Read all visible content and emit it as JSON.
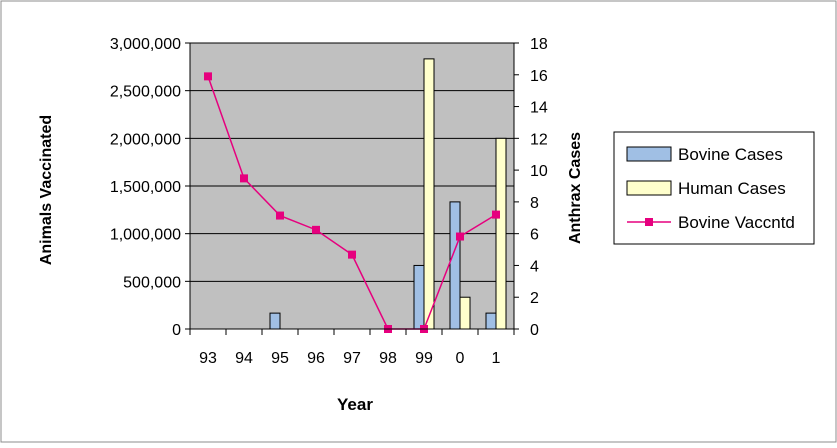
{
  "chart_data": {
    "type": "bar",
    "categories": [
      "93",
      "94",
      "95",
      "96",
      "97",
      "98",
      "99",
      "0",
      "1"
    ],
    "xlabel": "Year",
    "ylabel_left": "Animals Vaccinated",
    "ylabel_right": "Anthrax Cases",
    "ylim_left": [
      0,
      3000000
    ],
    "ylim_right": [
      0,
      18
    ],
    "yticks_left": [
      "0",
      "500,000",
      "1,000,000",
      "1,500,000",
      "2,000,000",
      "2,500,000",
      "3,000,000"
    ],
    "yticks_right": [
      "0",
      "2",
      "4",
      "6",
      "8",
      "10",
      "12",
      "14",
      "16",
      "18"
    ],
    "legend_position": "right",
    "series": [
      {
        "name": "Bovine Cases",
        "kind": "bar",
        "axis": "right",
        "color": "#a0bfe4",
        "values": [
          0,
          0,
          1,
          0,
          0,
          0,
          4,
          8,
          1
        ]
      },
      {
        "name": "Human Cases",
        "kind": "bar",
        "axis": "right",
        "color": "#ffffcc",
        "values": [
          0,
          0,
          0,
          0,
          0,
          0,
          17,
          2,
          12
        ]
      },
      {
        "name": "Bovine Vaccntd",
        "kind": "line",
        "axis": "left",
        "color": "#e6007e",
        "values": [
          2650000,
          1580000,
          1190000,
          1040000,
          780000,
          0,
          0,
          970000,
          1200000
        ]
      }
    ],
    "plot_background": "#c0c0c0",
    "grid": true
  }
}
